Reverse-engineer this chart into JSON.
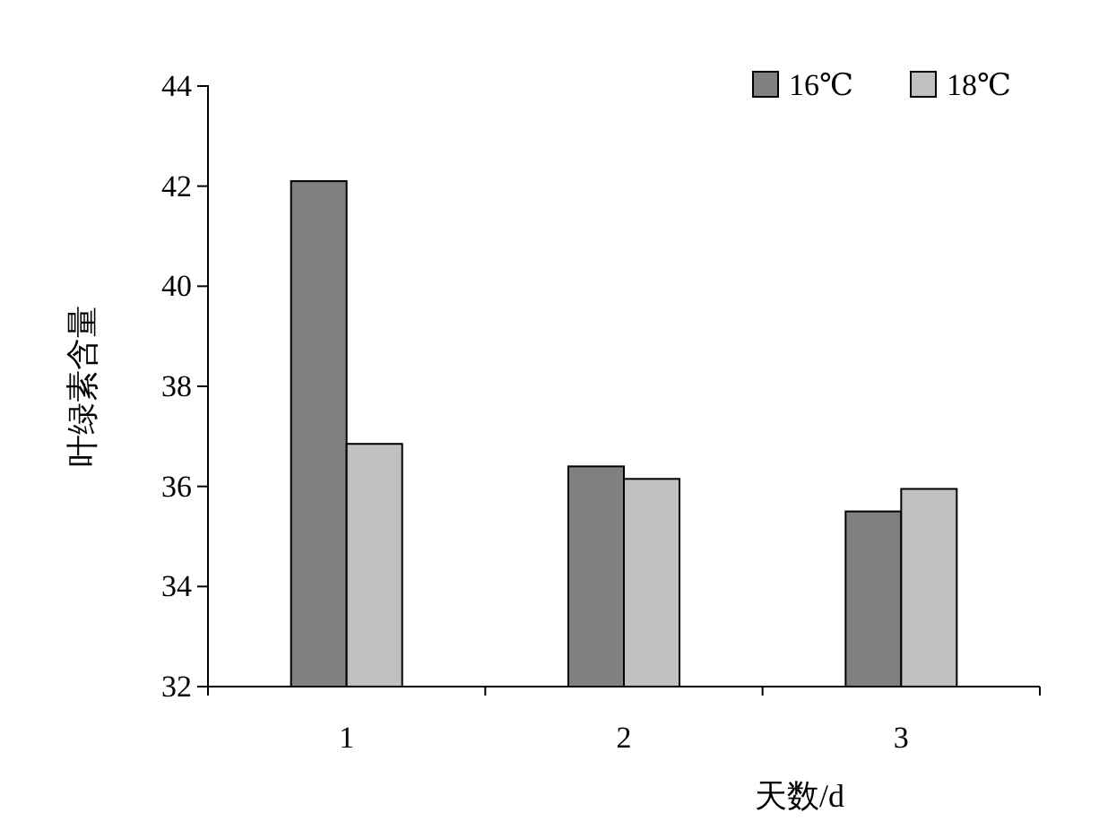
{
  "chart_data": {
    "type": "bar",
    "xlabel": "天数/d",
    "ylabel": "叶绿素含量",
    "categories": [
      "1",
      "2",
      "3"
    ],
    "series": [
      {
        "name": "16℃",
        "color": "#808080",
        "values": [
          42.1,
          36.4,
          35.5
        ]
      },
      {
        "name": "18℃",
        "color": "#c0c0c0",
        "values": [
          36.85,
          36.15,
          35.95
        ]
      }
    ],
    "ylim": [
      32,
      44
    ],
    "yticks": [
      32,
      34,
      36,
      38,
      40,
      42,
      44
    ],
    "grid": false,
    "legend": "top right"
  }
}
